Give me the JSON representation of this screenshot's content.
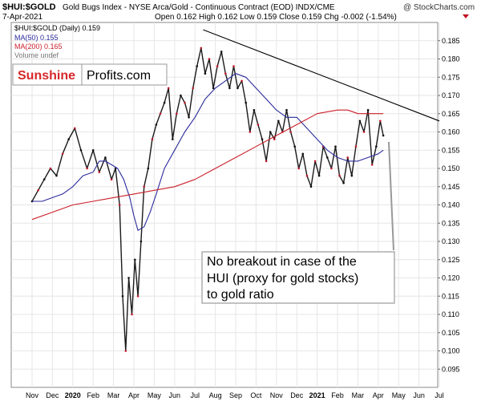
{
  "header": {
    "symbol": "$HUI:$GOLD",
    "description": "Gold Bugs Index - NYSE Arca/Gold - Continuous Contract (EOD) INDX/CME",
    "date": "7-Apr-2021",
    "quote": "Open 0.162 High 0.162 Low 0.159 Close 0.159 Chg -0.002 (-1.54%)",
    "watermark": "@ StockCharts.com"
  },
  "legend": [
    {
      "label": "$HUI:$GOLD (Daily) 0.159",
      "color": "#000000"
    },
    {
      "label": "MA(50) 0.155",
      "color": "#2b2b9c"
    },
    {
      "label": "MA(200) 0.165",
      "color": "#cc1f2a"
    },
    {
      "label": "Volume undef",
      "color": "#777777"
    }
  ],
  "logo": {
    "part1": "Sunshine",
    "part2": "Profits.com"
  },
  "annotation": [
    "No breakout in case of the",
    "HUI (proxy for gold stocks)",
    "to gold ratio"
  ],
  "chart_data": {
    "type": "line",
    "title": "$HUI:$GOLD",
    "xlabel": "",
    "ylabel": "",
    "ylim": [
      0.09,
      0.19
    ],
    "yticks": [
      "0.095",
      "0.100",
      "0.105",
      "0.110",
      "0.115",
      "0.120",
      "0.125",
      "0.130",
      "0.135",
      "0.140",
      "0.145",
      "0.150",
      "0.155",
      "0.160",
      "0.165",
      "0.170",
      "0.175",
      "0.180",
      "0.185"
    ],
    "xticks": [
      {
        "label": "Nov",
        "bold": false
      },
      {
        "label": "Dec",
        "bold": false
      },
      {
        "label": "2020",
        "bold": true
      },
      {
        "label": "Feb",
        "bold": false
      },
      {
        "label": "Mar",
        "bold": false
      },
      {
        "label": "Apr",
        "bold": false
      },
      {
        "label": "May",
        "bold": false
      },
      {
        "label": "Jun",
        "bold": false
      },
      {
        "label": "Jul",
        "bold": false
      },
      {
        "label": "Aug",
        "bold": false
      },
      {
        "label": "Sep",
        "bold": false
      },
      {
        "label": "Oct",
        "bold": false
      },
      {
        "label": "Nov",
        "bold": false
      },
      {
        "label": "Dec",
        "bold": false
      },
      {
        "label": "2021",
        "bold": true
      },
      {
        "label": "Feb",
        "bold": false
      },
      {
        "label": "Mar",
        "bold": false
      },
      {
        "label": "Apr",
        "bold": false
      },
      {
        "label": "May",
        "bold": false
      },
      {
        "label": "Jun",
        "bold": false
      },
      {
        "label": "Jul",
        "bold": false
      }
    ],
    "grid": true,
    "legend_position": "top-left",
    "series": [
      {
        "name": "$HUI:$GOLD (Daily)",
        "color": "#1a1a1a",
        "x": [
          0,
          0.3,
          0.6,
          0.9,
          1.2,
          1.5,
          1.8,
          2.1,
          2.4,
          2.7,
          3.0,
          3.3,
          3.6,
          3.9,
          4.1,
          4.3,
          4.45,
          4.6,
          4.75,
          4.9,
          5.05,
          5.2,
          5.35,
          5.5,
          5.7,
          5.9,
          6.1,
          6.3,
          6.5,
          6.7,
          6.9,
          7.1,
          7.3,
          7.5,
          7.7,
          7.9,
          8.1,
          8.3,
          8.5,
          8.7,
          8.9,
          9.1,
          9.3,
          9.5,
          9.7,
          9.9,
          10.1,
          10.3,
          10.5,
          10.7,
          10.9,
          11.1,
          11.3,
          11.5,
          11.7,
          11.9,
          12.1,
          12.3,
          12.5,
          12.7,
          12.9,
          13.1,
          13.3,
          13.5,
          13.7,
          13.9,
          14.1,
          14.3,
          14.5,
          14.7,
          14.9,
          15.1,
          15.3,
          15.5,
          15.7,
          15.9,
          16.1,
          16.3,
          16.5,
          16.7,
          16.9,
          17.1,
          17.25
        ],
        "y": [
          0.141,
          0.144,
          0.147,
          0.15,
          0.148,
          0.154,
          0.158,
          0.161,
          0.155,
          0.15,
          0.155,
          0.149,
          0.153,
          0.147,
          0.15,
          0.14,
          0.115,
          0.1,
          0.12,
          0.11,
          0.125,
          0.115,
          0.13,
          0.145,
          0.15,
          0.158,
          0.162,
          0.165,
          0.168,
          0.172,
          0.158,
          0.165,
          0.17,
          0.168,
          0.164,
          0.172,
          0.178,
          0.183,
          0.176,
          0.18,
          0.172,
          0.178,
          0.182,
          0.176,
          0.172,
          0.178,
          0.172,
          0.174,
          0.168,
          0.16,
          0.166,
          0.162,
          0.158,
          0.152,
          0.16,
          0.158,
          0.163,
          0.16,
          0.166,
          0.16,
          0.156,
          0.15,
          0.154,
          0.148,
          0.145,
          0.152,
          0.148,
          0.156,
          0.153,
          0.15,
          0.156,
          0.148,
          0.146,
          0.153,
          0.148,
          0.156,
          0.163,
          0.16,
          0.166,
          0.151,
          0.156,
          0.163,
          0.159
        ]
      },
      {
        "name": "MA(50)",
        "color": "#2b2b9c",
        "x": [
          0,
          0.5,
          1.0,
          1.5,
          2.0,
          2.5,
          3.0,
          3.3,
          3.6,
          3.9,
          4.2,
          4.5,
          4.8,
          5.0,
          5.2,
          5.5,
          5.8,
          6.1,
          6.5,
          7.0,
          7.5,
          8.0,
          8.5,
          9.0,
          9.5,
          10.0,
          10.5,
          11.0,
          11.5,
          12.0,
          12.5,
          13.0,
          13.5,
          14.0,
          14.5,
          15.0,
          15.5,
          16.0,
          16.5,
          17.0,
          17.25
        ],
        "y": [
          0.141,
          0.141,
          0.142,
          0.143,
          0.145,
          0.148,
          0.149,
          0.152,
          0.152,
          0.151,
          0.15,
          0.147,
          0.142,
          0.137,
          0.133,
          0.134,
          0.138,
          0.143,
          0.15,
          0.155,
          0.16,
          0.164,
          0.169,
          0.172,
          0.174,
          0.176,
          0.175,
          0.172,
          0.169,
          0.166,
          0.164,
          0.164,
          0.161,
          0.158,
          0.155,
          0.153,
          0.152,
          0.152,
          0.153,
          0.154,
          0.155
        ]
      },
      {
        "name": "MA(200)",
        "color": "#cc1f2a",
        "x": [
          0,
          1.0,
          2.0,
          3.0,
          4.0,
          5.0,
          6.0,
          7.0,
          8.0,
          9.0,
          10.0,
          11.0,
          12.0,
          13.0,
          14.0,
          15.0,
          15.5,
          16.0,
          16.5,
          17.0,
          17.25
        ],
        "y": [
          0.136,
          0.138,
          0.14,
          0.141,
          0.142,
          0.143,
          0.144,
          0.145,
          0.147,
          0.15,
          0.153,
          0.156,
          0.159,
          0.162,
          0.165,
          0.166,
          0.166,
          0.165,
          0.165,
          0.165,
          0.165
        ]
      },
      {
        "name": "Resistance line",
        "color": "#000000",
        "x": [
          8.4,
          20.0
        ],
        "y": [
          0.188,
          0.163
        ]
      }
    ]
  }
}
